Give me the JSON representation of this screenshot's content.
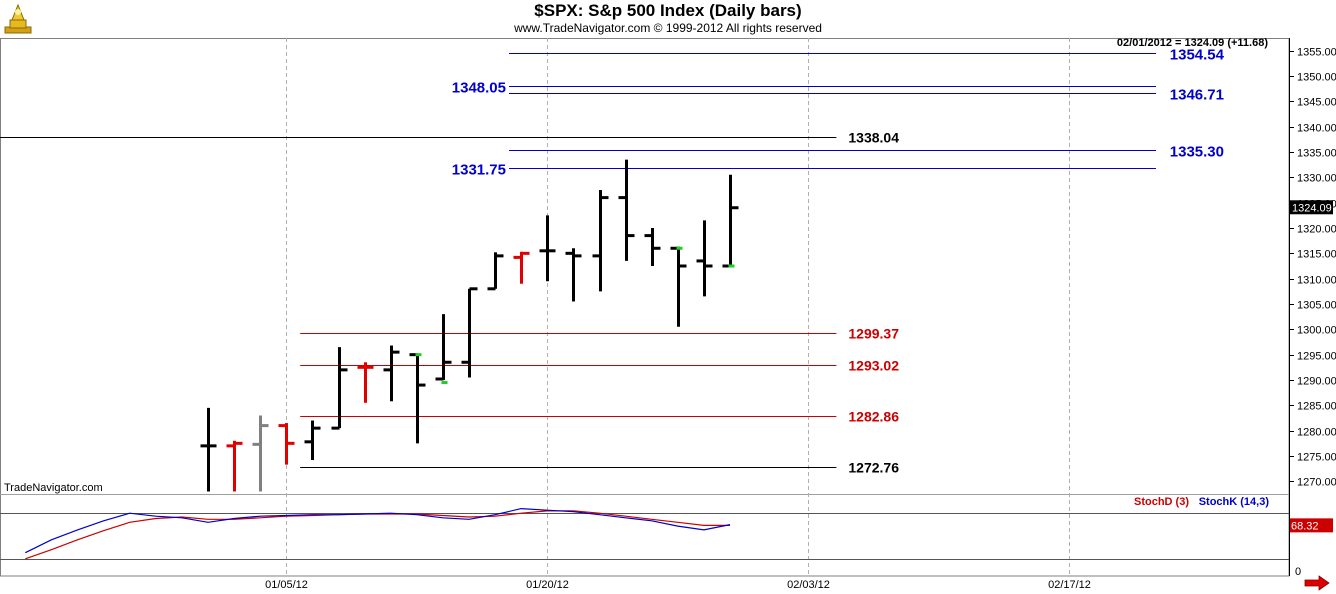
{
  "header": {
    "title": "$SPX:  S&p 500 Index  (Daily bars)",
    "subtitle": "www.TradeNavigator.com © 1999-2012 All rights reserved"
  },
  "chart_data": {
    "type": "ohlc",
    "title": "$SPX:  S&p 500 Index  (Daily bars)",
    "last_bar_info": "02/01/2012 = 1324.09 (+11.68)",
    "watermark": "TradeNavigator.com",
    "price_axis": {
      "ylim": [
        1267.5,
        1357.5
      ],
      "ticks": [
        1270,
        1275,
        1280,
        1285,
        1290,
        1295,
        1300,
        1305,
        1310,
        1315,
        1320,
        1325,
        1330,
        1335,
        1340,
        1345,
        1350,
        1355
      ],
      "last_price_label": "1324.09"
    },
    "date_axis": {
      "ticks": [
        {
          "label": "01/05/12",
          "x": 3
        },
        {
          "label": "01/20/12",
          "x": 13
        },
        {
          "label": "02/03/12",
          "x": 23
        },
        {
          "label": "02/17/12",
          "x": 33
        }
      ]
    },
    "bars": [
      {
        "x": 0,
        "open": 1277.0,
        "high": 1284.5,
        "low": 1268.0,
        "close": 1277.0,
        "color": "#000000"
      },
      {
        "x": 1,
        "open": 1277.0,
        "high": 1278.0,
        "low": 1268.0,
        "close": 1277.5,
        "color": "#e00000"
      },
      {
        "x": 2,
        "open": 1277.3,
        "high": 1283.0,
        "low": 1268.0,
        "close": 1281.0,
        "color": "#808080"
      },
      {
        "x": 3,
        "open": 1281.0,
        "high": 1281.5,
        "low": 1273.3,
        "close": 1277.5,
        "color": "#e00000"
      },
      {
        "x": 4,
        "open": 1277.8,
        "high": 1282.0,
        "low": 1274.2,
        "close": 1280.5,
        "color": "#000000"
      },
      {
        "x": 5,
        "open": 1280.5,
        "high": 1296.5,
        "low": 1280.5,
        "close": 1292.0,
        "color": "#000000"
      },
      {
        "x": 6,
        "open": 1292.5,
        "high": 1293.5,
        "low": 1285.5,
        "close": 1292.5,
        "color": "#e00000"
      },
      {
        "x": 7,
        "open": 1292.0,
        "high": 1296.8,
        "low": 1285.8,
        "close": 1295.5,
        "color": "#000000"
      },
      {
        "x": 8,
        "open": 1295.0,
        "high": 1295.2,
        "low": 1277.5,
        "close": 1289.0,
        "color": "#000000"
      },
      {
        "x": 9,
        "open": 1290.2,
        "high": 1303.0,
        "low": 1290.0,
        "close": 1293.5,
        "color": "#000000"
      },
      {
        "x": 10,
        "open": 1293.5,
        "high": 1308.0,
        "low": 1290.5,
        "close": 1308.0,
        "color": "#000000"
      },
      {
        "x": 11,
        "open": 1308.0,
        "high": 1315.2,
        "low": 1308.0,
        "close": 1314.5,
        "color": "#000000"
      },
      {
        "x": 12,
        "open": 1314.2,
        "high": 1315.3,
        "low": 1309.0,
        "close": 1315.0,
        "color": "#e00000"
      },
      {
        "x": 13,
        "open": 1315.5,
        "high": 1322.5,
        "low": 1309.5,
        "close": 1315.5,
        "color": "#000000"
      },
      {
        "x": 14,
        "open": 1315.0,
        "high": 1316.0,
        "low": 1305.5,
        "close": 1314.5,
        "color": "#000000"
      },
      {
        "x": 15,
        "open": 1314.5,
        "high": 1327.5,
        "low": 1307.5,
        "close": 1326.0,
        "color": "#000000"
      },
      {
        "x": 16,
        "open": 1326.0,
        "high": 1333.5,
        "low": 1313.5,
        "close": 1318.5,
        "color": "#000000"
      },
      {
        "x": 17,
        "open": 1318.5,
        "high": 1320.0,
        "low": 1312.5,
        "close": 1316.0,
        "color": "#000000"
      },
      {
        "x": 18,
        "open": 1316.0,
        "high": 1316.3,
        "low": 1300.5,
        "close": 1312.5,
        "color": "#000000"
      },
      {
        "x": 19,
        "open": 1313.5,
        "high": 1321.5,
        "low": 1306.5,
        "close": 1312.5,
        "color": "#000000"
      },
      {
        "x": 20,
        "open": 1312.5,
        "high": 1330.5,
        "low": 1312.5,
        "close": 1324.0,
        "color": "#000000"
      }
    ],
    "green_ticks": [
      {
        "x": 8,
        "y": 1295.0
      },
      {
        "x": 9,
        "y": 1289.5
      },
      {
        "x": 18,
        "y": 1316.0
      },
      {
        "x": 20,
        "y": 1312.5
      }
    ],
    "levels": [
      {
        "value": 1354.54,
        "label": "1354.54",
        "x_start": 10,
        "color": "#0000cc",
        "label_side": "right"
      },
      {
        "value": 1348.05,
        "label": "1348.05",
        "x_start": 10,
        "color": "#0000cc",
        "label_side": "left"
      },
      {
        "value": 1346.71,
        "label": "1346.71",
        "x_start": 10,
        "color": "#0000cc",
        "label_side": "right"
      },
      {
        "value": 1338.04,
        "label": "1338.04",
        "x_start": -8,
        "x_end": 24,
        "color": "#000000",
        "label_side": "end"
      },
      {
        "value": 1335.3,
        "label": "1335.30",
        "x_start": 10,
        "color": "#0000cc",
        "label_side": "right"
      },
      {
        "value": 1331.75,
        "label": "1331.75",
        "x_start": 10,
        "color": "#0000cc",
        "label_side": "left"
      },
      {
        "value": 1299.37,
        "label": "1299.37",
        "x_start": 2,
        "x_end": 24,
        "color": "#cc0000",
        "label_side": "end"
      },
      {
        "value": 1293.02,
        "label": "1293.02",
        "x_start": 2,
        "x_end": 24,
        "color": "#cc0000",
        "label_side": "end"
      },
      {
        "value": 1282.86,
        "label": "1282.86",
        "x_start": 2,
        "x_end": 24,
        "color": "#cc0000",
        "label_side": "end"
      },
      {
        "value": 1272.76,
        "label": "1272.76",
        "x_start": 2,
        "x_end": 24,
        "color": "#000000",
        "label_side": "end"
      }
    ],
    "stochastic": {
      "legend": [
        {
          "name": "StochD (3)",
          "color": "#cc0000"
        },
        {
          "name": "StochK (14,3)",
          "color": "#0000cc"
        }
      ],
      "axis_label": "0",
      "last_value_label": "68.32",
      "ylim": [
        0,
        100
      ],
      "reference_lines": [
        80,
        20
      ],
      "stoch_k": [
        [
          -7,
          28
        ],
        [
          -6,
          45
        ],
        [
          -5,
          58
        ],
        [
          -4,
          70
        ],
        [
          -3,
          80
        ],
        [
          -2,
          76
        ],
        [
          -1,
          74
        ],
        [
          0,
          68
        ],
        [
          1,
          73
        ],
        [
          2,
          76
        ],
        [
          3,
          77
        ],
        [
          4,
          78
        ],
        [
          5,
          78
        ],
        [
          6,
          79
        ],
        [
          7,
          80
        ],
        [
          8,
          78
        ],
        [
          9,
          74
        ],
        [
          10,
          72
        ],
        [
          11,
          78
        ],
        [
          12,
          86
        ],
        [
          13,
          84
        ],
        [
          14,
          82
        ],
        [
          15,
          78
        ],
        [
          16,
          74
        ],
        [
          17,
          70
        ],
        [
          18,
          63
        ],
        [
          19,
          58
        ],
        [
          20,
          65
        ]
      ],
      "stoch_d": [
        [
          -7,
          20
        ],
        [
          -6,
          32
        ],
        [
          -5,
          45
        ],
        [
          -4,
          57
        ],
        [
          -3,
          68
        ],
        [
          -2,
          73
        ],
        [
          -1,
          75
        ],
        [
          0,
          72
        ],
        [
          1,
          72
        ],
        [
          2,
          74
        ],
        [
          3,
          76
        ],
        [
          4,
          77
        ],
        [
          5,
          78
        ],
        [
          6,
          79
        ],
        [
          7,
          79
        ],
        [
          8,
          79
        ],
        [
          9,
          77
        ],
        [
          10,
          75
        ],
        [
          11,
          76
        ],
        [
          12,
          80
        ],
        [
          13,
          83
        ],
        [
          14,
          83
        ],
        [
          15,
          80
        ],
        [
          16,
          76
        ],
        [
          17,
          72
        ],
        [
          18,
          68
        ],
        [
          19,
          64
        ],
        [
          20,
          64
        ]
      ]
    }
  }
}
